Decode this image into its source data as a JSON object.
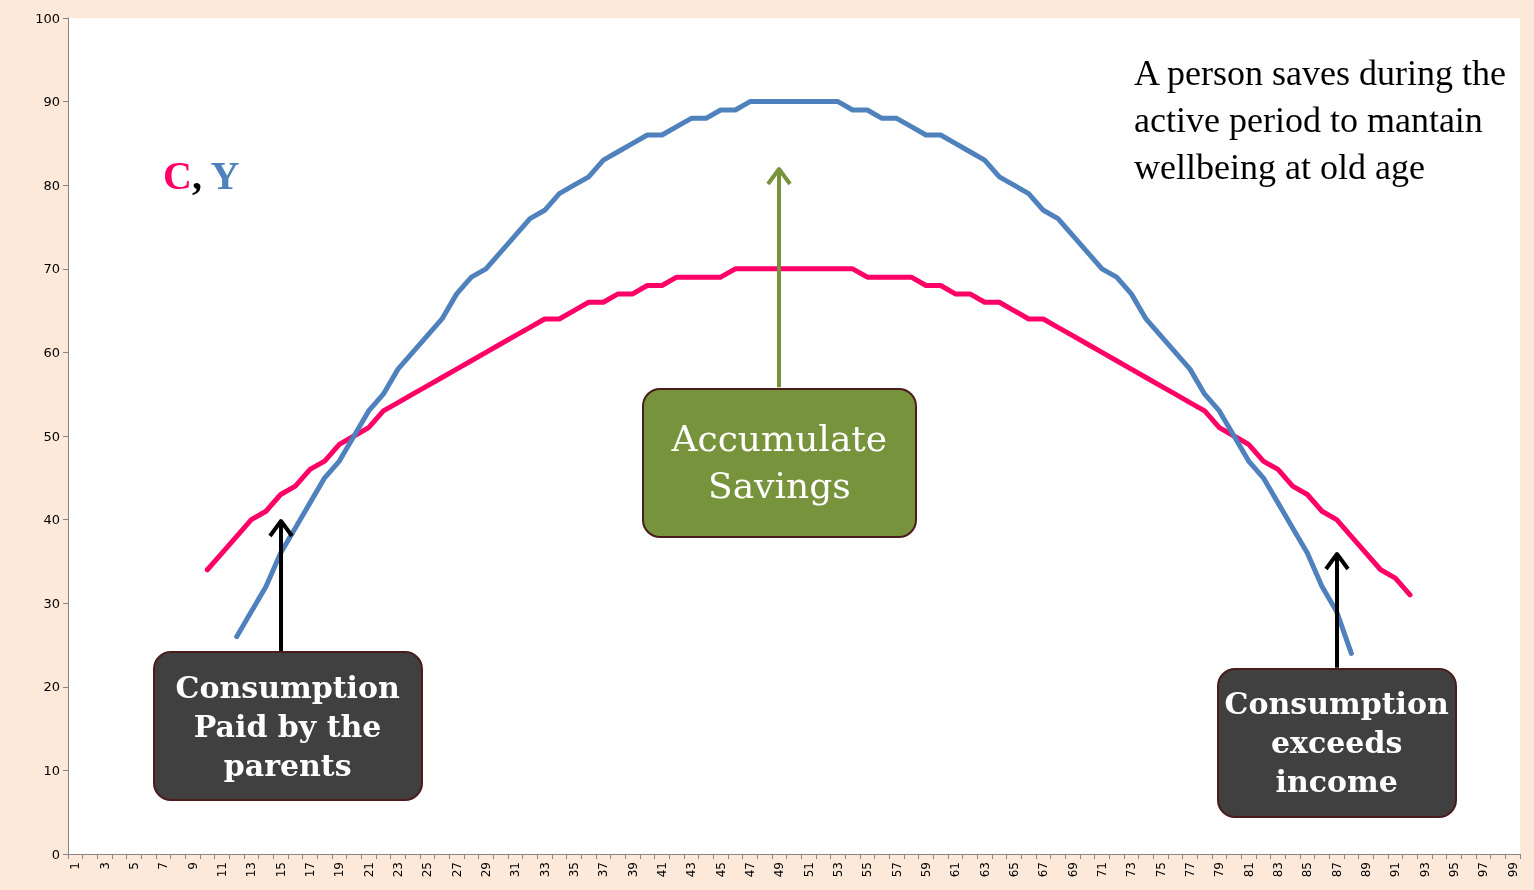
{
  "chart_data": {
    "type": "line",
    "categories": [
      "1",
      null,
      "3",
      null,
      "5",
      null,
      "7",
      null,
      "9",
      null,
      "11",
      null,
      "13",
      null,
      "15",
      null,
      "17",
      null,
      "19",
      null,
      "21",
      null,
      "23",
      null,
      "25",
      null,
      "27",
      null,
      "29",
      null,
      "31",
      null,
      "33",
      null,
      "35",
      null,
      "37",
      null,
      "39",
      null,
      "41",
      null,
      "43",
      null,
      "45",
      null,
      "47",
      null,
      "49",
      null,
      "51",
      null,
      "53",
      null,
      "55",
      null,
      "57",
      null,
      "59",
      null,
      "61",
      null,
      "63",
      null,
      "65",
      null,
      "67",
      null,
      "69",
      null,
      "71",
      null,
      "73",
      null,
      "75",
      null,
      "77",
      null,
      "79",
      null,
      "81",
      null,
      "83",
      null,
      "85",
      null,
      "87",
      null,
      "89",
      null,
      "91",
      null,
      "93",
      null,
      "95",
      null,
      "97",
      null,
      "99"
    ],
    "series": [
      {
        "color": "#ff0066",
        "values": [
          null,
          null,
          null,
          null,
          null,
          null,
          null,
          null,
          null,
          34,
          36,
          38,
          40,
          41,
          43,
          44,
          46,
          47,
          49,
          50,
          51,
          53,
          54,
          55,
          56,
          57,
          58,
          59,
          60,
          61,
          62,
          63,
          64,
          64,
          65,
          66,
          66,
          67,
          67,
          68,
          68,
          69,
          69,
          69,
          69,
          70,
          70,
          70,
          70,
          70,
          70,
          70,
          70,
          70,
          69,
          69,
          69,
          69,
          68,
          68,
          67,
          67,
          66,
          66,
          65,
          64,
          64,
          63,
          62,
          61,
          60,
          59,
          58,
          57,
          56,
          55,
          54,
          53,
          51,
          50,
          49,
          47,
          46,
          44,
          43,
          41,
          40,
          38,
          36,
          34,
          33,
          31,
          null,
          null,
          null,
          null,
          null,
          null,
          null
        ]
      },
      {
        "color": "#4f81bd",
        "values": [
          null,
          null,
          null,
          null,
          null,
          null,
          null,
          null,
          null,
          null,
          null,
          26,
          29,
          32,
          36,
          39,
          42,
          45,
          47,
          50,
          53,
          55,
          58,
          60,
          62,
          64,
          67,
          69,
          70,
          72,
          74,
          76,
          77,
          79,
          80,
          81,
          83,
          84,
          85,
          86,
          86,
          87,
          88,
          88,
          89,
          89,
          90,
          90,
          90,
          90,
          90,
          90,
          90,
          89,
          89,
          88,
          88,
          87,
          86,
          86,
          85,
          84,
          83,
          81,
          80,
          79,
          77,
          76,
          74,
          72,
          70,
          69,
          67,
          64,
          62,
          60,
          58,
          55,
          53,
          50,
          47,
          45,
          42,
          39,
          36,
          32,
          29,
          24,
          null,
          null,
          null,
          null,
          null,
          null,
          null,
          null,
          null,
          null,
          null
        ]
      }
    ],
    "ylim": [
      0,
      100
    ],
    "yticks": [
      0,
      10,
      20,
      30,
      40,
      50,
      60,
      70,
      80,
      90,
      100
    ],
    "ylabel": "C, Y",
    "grid": false,
    "marker": "none",
    "line_style": "solid",
    "annotations": [
      "Consumption Paid by the parents",
      "Accumulate Savings",
      "Consumption exceeds income",
      "A person saves during the active period to mantain wellbeing at old age"
    ]
  }
}
